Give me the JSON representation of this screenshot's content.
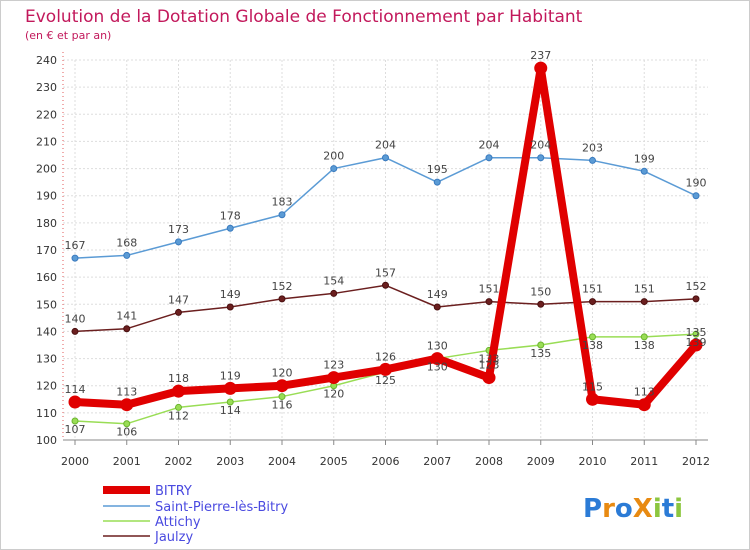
{
  "chart_data": {
    "type": "line",
    "title": "Evolution de la Dotation Globale de Fonctionnement par Habitant",
    "subtitle": "(en € et par an)",
    "x": [
      "2000",
      "2001",
      "2002",
      "2003",
      "2004",
      "2005",
      "2006",
      "2007",
      "2008",
      "2009",
      "2010",
      "2011",
      "2012"
    ],
    "ylim": [
      100,
      240
    ],
    "yticks": [
      100,
      110,
      120,
      130,
      140,
      150,
      160,
      170,
      180,
      190,
      200,
      210,
      220,
      230,
      240
    ],
    "grid": true,
    "legend_position": "bottom-left",
    "series": [
      {
        "name": "BITRY",
        "color": "#e00000",
        "values": [
          114,
          113,
          118,
          119,
          120,
          123,
          126,
          130,
          123,
          237,
          115,
          113,
          135
        ],
        "labels": [
          "114",
          "113",
          "118",
          "119",
          "120",
          "123",
          "126",
          "130",
          "123",
          "237",
          "115",
          "113",
          "135"
        ]
      },
      {
        "name": "Saint-Pierre-lès-Bitry",
        "color": "#5b9bd5",
        "values": [
          167,
          168,
          173,
          178,
          183,
          200,
          204,
          195,
          204,
          204,
          203,
          199,
          190
        ],
        "labels": [
          "167",
          "168",
          "173",
          "178",
          "183",
          "200",
          "204",
          "195",
          "204",
          "204",
          "203",
          "199",
          "190"
        ]
      },
      {
        "name": "Attichy",
        "color": "#99dd55",
        "values": [
          107,
          106,
          112,
          114,
          116,
          120,
          125,
          130,
          133,
          135,
          138,
          138,
          139
        ],
        "labels": [
          "107",
          "106",
          "112",
          "114",
          "116",
          "120",
          "125",
          "130",
          "133",
          "135",
          "138",
          "138",
          "139"
        ]
      },
      {
        "name": "Jaulzy",
        "color": "#6b1f1f",
        "values": [
          140,
          141,
          147,
          149,
          152,
          154,
          157,
          149,
          151,
          150,
          151,
          151,
          152
        ],
        "labels": [
          "140",
          "141",
          "147",
          "149",
          "152",
          "154",
          "157",
          "149",
          "151",
          "150",
          "151",
          "151",
          "152"
        ]
      }
    ]
  },
  "logo": {
    "text": "ProXiti",
    "letters": [
      "P",
      "r",
      "o",
      "X",
      "i",
      "t",
      "i"
    ],
    "colors": [
      "#2b7bd6",
      "#e88a12",
      "#2b7bd6",
      "#e88a12",
      "#8cc63f",
      "#2b7bd6",
      "#8cc63f"
    ]
  }
}
